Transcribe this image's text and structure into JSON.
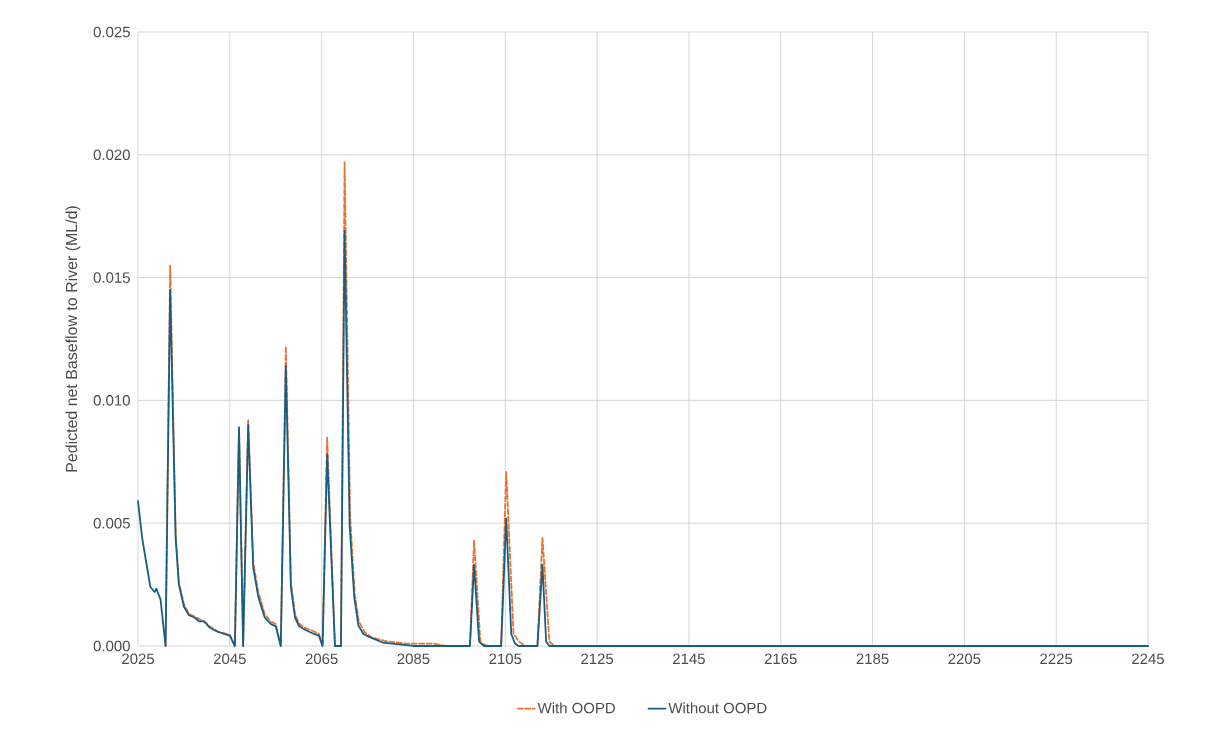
{
  "chart_data": {
    "type": "line",
    "ylabel": "Pedicted net Baseflow to River (ML/d)",
    "xlim": [
      2025,
      2245
    ],
    "xticks": [
      2025,
      2045,
      2065,
      2085,
      2105,
      2125,
      2145,
      2165,
      2185,
      2205,
      2225,
      2245
    ],
    "ylim": [
      0,
      0.025
    ],
    "yticks": [
      {
        "value": 0,
        "label": "0.000"
      },
      {
        "value": 0.005,
        "label": "0.005"
      },
      {
        "value": 0.01,
        "label": "0.010"
      },
      {
        "value": 0.015,
        "label": "0.015"
      },
      {
        "value": 0.02,
        "label": "0.020"
      },
      {
        "value": 0.025,
        "label": "0.025"
      }
    ],
    "grid": true,
    "legend": "bottom",
    "marker": "none",
    "series": [
      {
        "name": "With OOPD",
        "color": "#e97132",
        "line_style": "dashed",
        "x": [
          2031,
          2032,
          2033.2,
          2033.9,
          2035,
          2036.1,
          2037.3,
          2038.3,
          2039.4,
          2040.6,
          2042.3,
          2045,
          2046.1,
          2047,
          2047.9,
          2049,
          2050.1,
          2051.2,
          2052.6,
          2053.9,
          2055,
          2056.1,
          2057.2,
          2058.3,
          2059.2,
          2060.1,
          2061.4,
          2063.2,
          2064.4,
          2065.2,
          2066.2,
          2067.9,
          2069.2,
          2070,
          2071.2,
          2072.2,
          2073.1,
          2074.4,
          2075.9,
          2078.9,
          2083.4,
          2089.5,
          2092,
          2097.3,
          2098.2,
          2099.6,
          2101.3,
          2104.1,
          2105.2,
          2106.8,
          2107.9,
          2109.3,
          2112,
          2113.1,
          2114.6,
          2115.6,
          2245
        ],
        "values": [
          0,
          0.0155,
          0.0045,
          0.0026,
          0.0017,
          0.0013,
          0.0012,
          0.0011,
          0.001,
          0.0008,
          0.0006,
          0.00045,
          0,
          0.0089,
          0,
          0.0092,
          0.0034,
          0.0022,
          0.0013,
          0.001,
          0.0009,
          0,
          0.0122,
          0.0026,
          0.0013,
          0.0009,
          0.00075,
          0.0006,
          0.0005,
          0,
          0.0085,
          0,
          0,
          0.0197,
          0.0053,
          0.0021,
          0.001,
          0.00056,
          0.00035,
          0.0002,
          0.0001,
          0.0001,
          0,
          0,
          0.0043,
          0.0001,
          0,
          0,
          0.0071,
          0.0005,
          0.0002,
          0,
          0,
          0.0044,
          0.0002,
          0,
          0
        ]
      },
      {
        "name": "Without OOPD",
        "color": "#156082",
        "line_style": "solid",
        "x": [
          2025,
          2025.9,
          2026.8,
          2027.7,
          2028.6,
          2029,
          2029.9,
          2031,
          2032,
          2033.2,
          2033.9,
          2035,
          2036.1,
          2037.3,
          2038.3,
          2039.4,
          2040.6,
          2042.3,
          2045,
          2046.1,
          2047,
          2047.9,
          2049,
          2050.1,
          2051.2,
          2052.6,
          2053.9,
          2055,
          2056.1,
          2057.2,
          2058.3,
          2059.2,
          2060.1,
          2061.4,
          2063.2,
          2064.4,
          2065.2,
          2066.2,
          2067.9,
          2069.2,
          2070,
          2071.1,
          2072.1,
          2073,
          2074.1,
          2075.6,
          2078.3,
          2085,
          2097.3,
          2098.2,
          2099.3,
          2100.4,
          2104.1,
          2105.2,
          2106.3,
          2107.1,
          2107.9,
          2112,
          2113.1,
          2113.9,
          2114.6,
          2245
        ],
        "values": [
          0.0059,
          0.0044,
          0.0034,
          0.0024,
          0.0022,
          0.00233,
          0.0019,
          0,
          0.0145,
          0.0044,
          0.0025,
          0.0016,
          0.00125,
          0.00116,
          0.001,
          0.001,
          0.00075,
          0.00058,
          0.00042,
          0,
          0.0089,
          0,
          0.009,
          0.0032,
          0.002,
          0.00116,
          0.0009,
          0.0008,
          0,
          0.0114,
          0.0024,
          0.00116,
          0.0008,
          0.00066,
          0.0005,
          0.00042,
          0,
          0.0078,
          0,
          0,
          0.0169,
          0.0049,
          0.002,
          0.00084,
          0.00049,
          0.00035,
          0.00014,
          0,
          0,
          0.0033,
          0.00018,
          0,
          0,
          0.0052,
          0.0005,
          0.0001,
          0,
          0,
          0.0033,
          0.00018,
          0,
          0
        ]
      }
    ]
  }
}
